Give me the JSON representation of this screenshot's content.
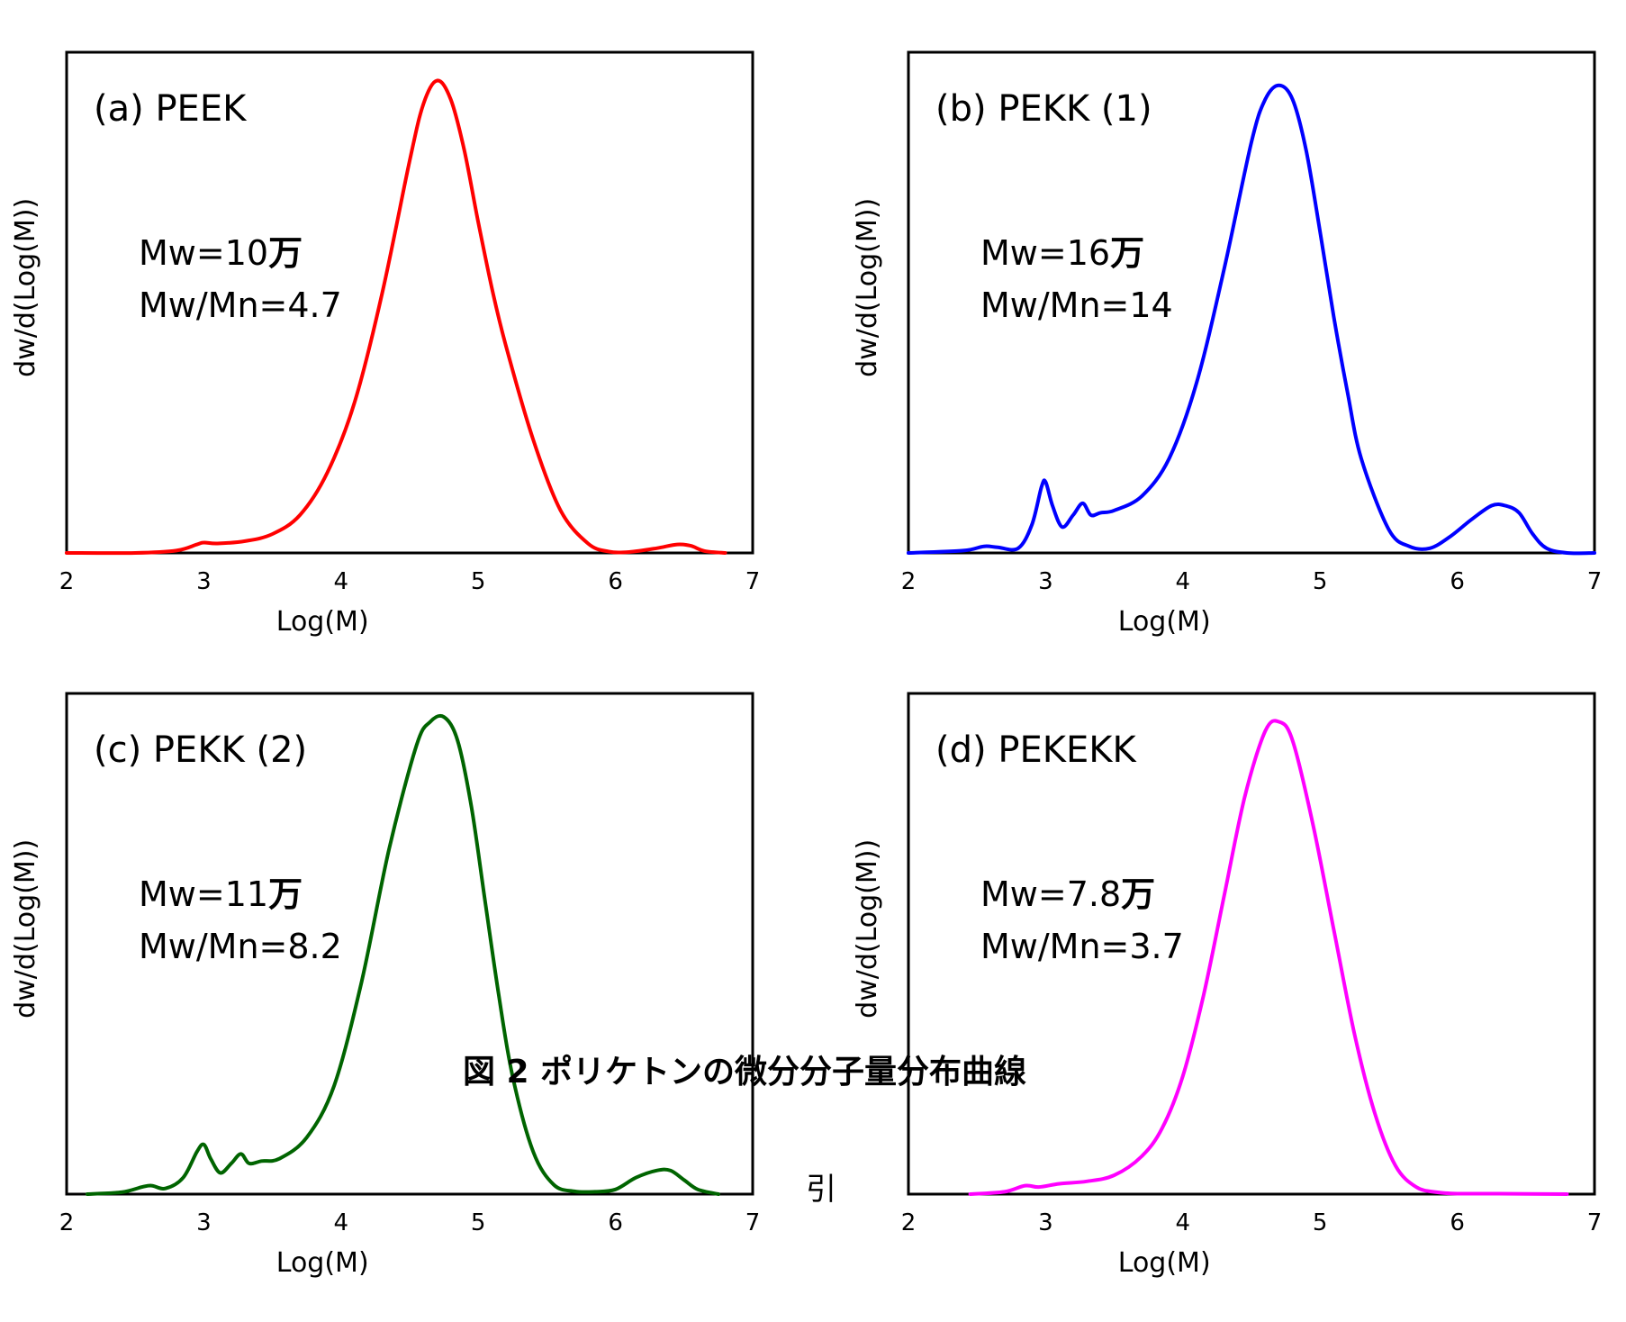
{
  "caption": "図 2  ポリケトンの微分分子量分布曲線",
  "stray_text": "引",
  "chart_data": [
    {
      "type": "line",
      "panel_label": "(a) PEEK",
      "annotation_mw_prefix": "Mw=10",
      "annotation_mw_unit": "万",
      "annotation_dispersity": "Mw/Mn=4.7",
      "xlabel": "Log(M)",
      "ylabel": "dw/d(Log(M))",
      "xlim": [
        2,
        7
      ],
      "ylim": [
        0,
        1.06
      ],
      "xticks": [
        "2",
        "3",
        "4",
        "5",
        "6",
        "7"
      ],
      "color": "#ff0000",
      "series": [
        {
          "x": [
            2.0,
            2.5,
            2.8,
            2.95,
            3.0,
            3.1,
            3.3,
            3.5,
            3.7,
            3.9,
            4.1,
            4.3,
            4.5,
            4.6,
            4.7,
            4.8,
            4.9,
            5.0,
            5.1,
            5.2,
            5.4,
            5.6,
            5.8,
            5.95,
            6.1,
            6.3,
            6.45,
            6.55,
            6.65,
            6.8
          ],
          "y": [
            0.0,
            0.0,
            0.005,
            0.018,
            0.022,
            0.02,
            0.025,
            0.04,
            0.08,
            0.17,
            0.32,
            0.55,
            0.83,
            0.95,
            1.0,
            0.96,
            0.85,
            0.7,
            0.56,
            0.44,
            0.24,
            0.09,
            0.02,
            0.003,
            0.002,
            0.01,
            0.018,
            0.015,
            0.004,
            0.0
          ]
        }
      ]
    },
    {
      "type": "line",
      "panel_label": "(b) PEKK (1)",
      "annotation_mw_prefix": "Mw=16",
      "annotation_mw_unit": "万",
      "annotation_dispersity": "Mw/Mn=14",
      "xlabel": "Log(M)",
      "ylabel": "dw/d(Log(M))",
      "xlim": [
        2,
        7
      ],
      "ylim": [
        0,
        1.06
      ],
      "xticks": [
        "2",
        "3",
        "4",
        "5",
        "6",
        "7"
      ],
      "color": "#0000ff",
      "series": [
        {
          "x": [
            2.0,
            2.4,
            2.55,
            2.65,
            2.8,
            2.9,
            2.97,
            3.0,
            3.05,
            3.12,
            3.2,
            3.27,
            3.33,
            3.4,
            3.5,
            3.7,
            3.9,
            4.1,
            4.3,
            4.5,
            4.6,
            4.7,
            4.8,
            4.9,
            5.0,
            5.1,
            5.2,
            5.3,
            5.5,
            5.65,
            5.8,
            5.95,
            6.1,
            6.25,
            6.35,
            6.45,
            6.55,
            6.65,
            6.8,
            7.0
          ],
          "y": [
            0.0,
            0.005,
            0.014,
            0.012,
            0.01,
            0.06,
            0.14,
            0.15,
            0.1,
            0.055,
            0.08,
            0.105,
            0.08,
            0.085,
            0.09,
            0.12,
            0.2,
            0.36,
            0.6,
            0.87,
            0.96,
            0.99,
            0.96,
            0.85,
            0.68,
            0.5,
            0.34,
            0.2,
            0.05,
            0.014,
            0.01,
            0.035,
            0.07,
            0.1,
            0.1,
            0.085,
            0.04,
            0.01,
            0.0,
            0.0
          ]
        }
      ]
    },
    {
      "type": "line",
      "panel_label": "(c) PEKK (2)",
      "annotation_mw_prefix": "Mw=11",
      "annotation_mw_unit": "万",
      "annotation_dispersity": "Mw/Mn=8.2",
      "xlabel": "Log(M)",
      "ylabel": "dw/d(Log(M))",
      "xlim": [
        2,
        7
      ],
      "ylim": [
        0,
        1.06
      ],
      "xticks": [
        "2",
        "3",
        "4",
        "5",
        "6",
        "7"
      ],
      "color": "#006400",
      "series": [
        {
          "x": [
            2.15,
            2.4,
            2.55,
            2.62,
            2.72,
            2.85,
            2.95,
            3.0,
            3.05,
            3.12,
            3.2,
            3.27,
            3.33,
            3.42,
            3.55,
            3.75,
            3.95,
            4.15,
            4.35,
            4.55,
            4.65,
            4.75,
            4.85,
            4.95,
            5.05,
            5.15,
            5.25,
            5.4,
            5.55,
            5.7,
            5.85,
            6.0,
            6.15,
            6.3,
            6.4,
            6.5,
            6.6,
            6.75
          ],
          "y": [
            0.0,
            0.004,
            0.015,
            0.018,
            0.012,
            0.035,
            0.09,
            0.105,
            0.075,
            0.045,
            0.065,
            0.085,
            0.065,
            0.07,
            0.075,
            0.12,
            0.23,
            0.45,
            0.73,
            0.95,
            1.0,
            1.01,
            0.96,
            0.82,
            0.62,
            0.42,
            0.25,
            0.09,
            0.02,
            0.006,
            0.005,
            0.01,
            0.035,
            0.05,
            0.05,
            0.03,
            0.01,
            0.0
          ]
        }
      ]
    },
    {
      "type": "line",
      "panel_label": "(d) PEKEKK",
      "annotation_mw_prefix": "Mw=7.8",
      "annotation_mw_unit": "万",
      "annotation_dispersity": "Mw/Mn=3.7",
      "xlabel": "Log(M)",
      "ylabel": "dw/d(Log(M))",
      "xlim": [
        2,
        7
      ],
      "ylim": [
        0,
        1.06
      ],
      "xticks": [
        "2",
        "3",
        "4",
        "5",
        "6",
        "7"
      ],
      "color": "#ff00ff",
      "series": [
        {
          "x": [
            2.45,
            2.7,
            2.85,
            2.95,
            3.1,
            3.3,
            3.5,
            3.7,
            3.85,
            4.0,
            4.15,
            4.3,
            4.45,
            4.6,
            4.7,
            4.8,
            4.95,
            5.1,
            5.25,
            5.4,
            5.55,
            5.7,
            5.85,
            6.0,
            6.3,
            6.8
          ],
          "y": [
            0.0,
            0.005,
            0.018,
            0.015,
            0.022,
            0.027,
            0.04,
            0.08,
            0.14,
            0.25,
            0.42,
            0.63,
            0.84,
            0.98,
            1.0,
            0.96,
            0.78,
            0.56,
            0.34,
            0.17,
            0.06,
            0.015,
            0.004,
            0.001,
            0.001,
            0.0
          ]
        }
      ]
    }
  ]
}
